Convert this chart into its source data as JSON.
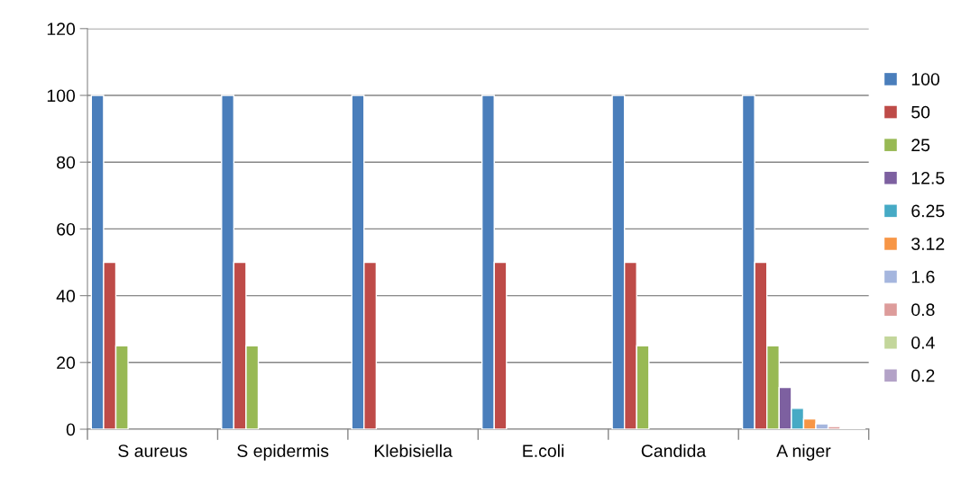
{
  "chart_data": {
    "type": "bar",
    "categories": [
      "S aureus",
      "S epidermis",
      "Klebisiella",
      "E.coli",
      "Candida",
      "A niger"
    ],
    "series": [
      {
        "name": "100",
        "color": "#4a7ebb",
        "values": [
          100,
          100,
          100,
          100,
          100,
          100
        ]
      },
      {
        "name": "50",
        "color": "#be4b48",
        "values": [
          50,
          50,
          50,
          50,
          50,
          50
        ]
      },
      {
        "name": "25",
        "color": "#98b954",
        "values": [
          25,
          25,
          null,
          null,
          25,
          25
        ]
      },
      {
        "name": "12.5",
        "color": "#7d60a0",
        "values": [
          null,
          null,
          null,
          null,
          null,
          12.5
        ]
      },
      {
        "name": "6.25",
        "color": "#46aac5",
        "values": [
          null,
          null,
          null,
          null,
          null,
          6.25
        ]
      },
      {
        "name": "3.12",
        "color": "#f79646",
        "values": [
          null,
          null,
          null,
          null,
          null,
          3.12
        ]
      },
      {
        "name": "1.6",
        "color": "#a5b6de",
        "values": [
          null,
          null,
          null,
          null,
          null,
          1.6
        ]
      },
      {
        "name": "0.8",
        "color": "#dd9c9b",
        "values": [
          null,
          null,
          null,
          null,
          null,
          0.8
        ]
      },
      {
        "name": "0.4",
        "color": "#c3d69b",
        "values": [
          null,
          null,
          null,
          null,
          null,
          0.4
        ]
      },
      {
        "name": "0.2",
        "color": "#b3a2c7",
        "values": [
          null,
          null,
          null,
          null,
          null,
          0.2
        ]
      }
    ],
    "ylim": [
      0,
      120
    ],
    "yticks": [
      0,
      20,
      40,
      60,
      80,
      100,
      120
    ],
    "grid": "y",
    "legend": "right"
  }
}
